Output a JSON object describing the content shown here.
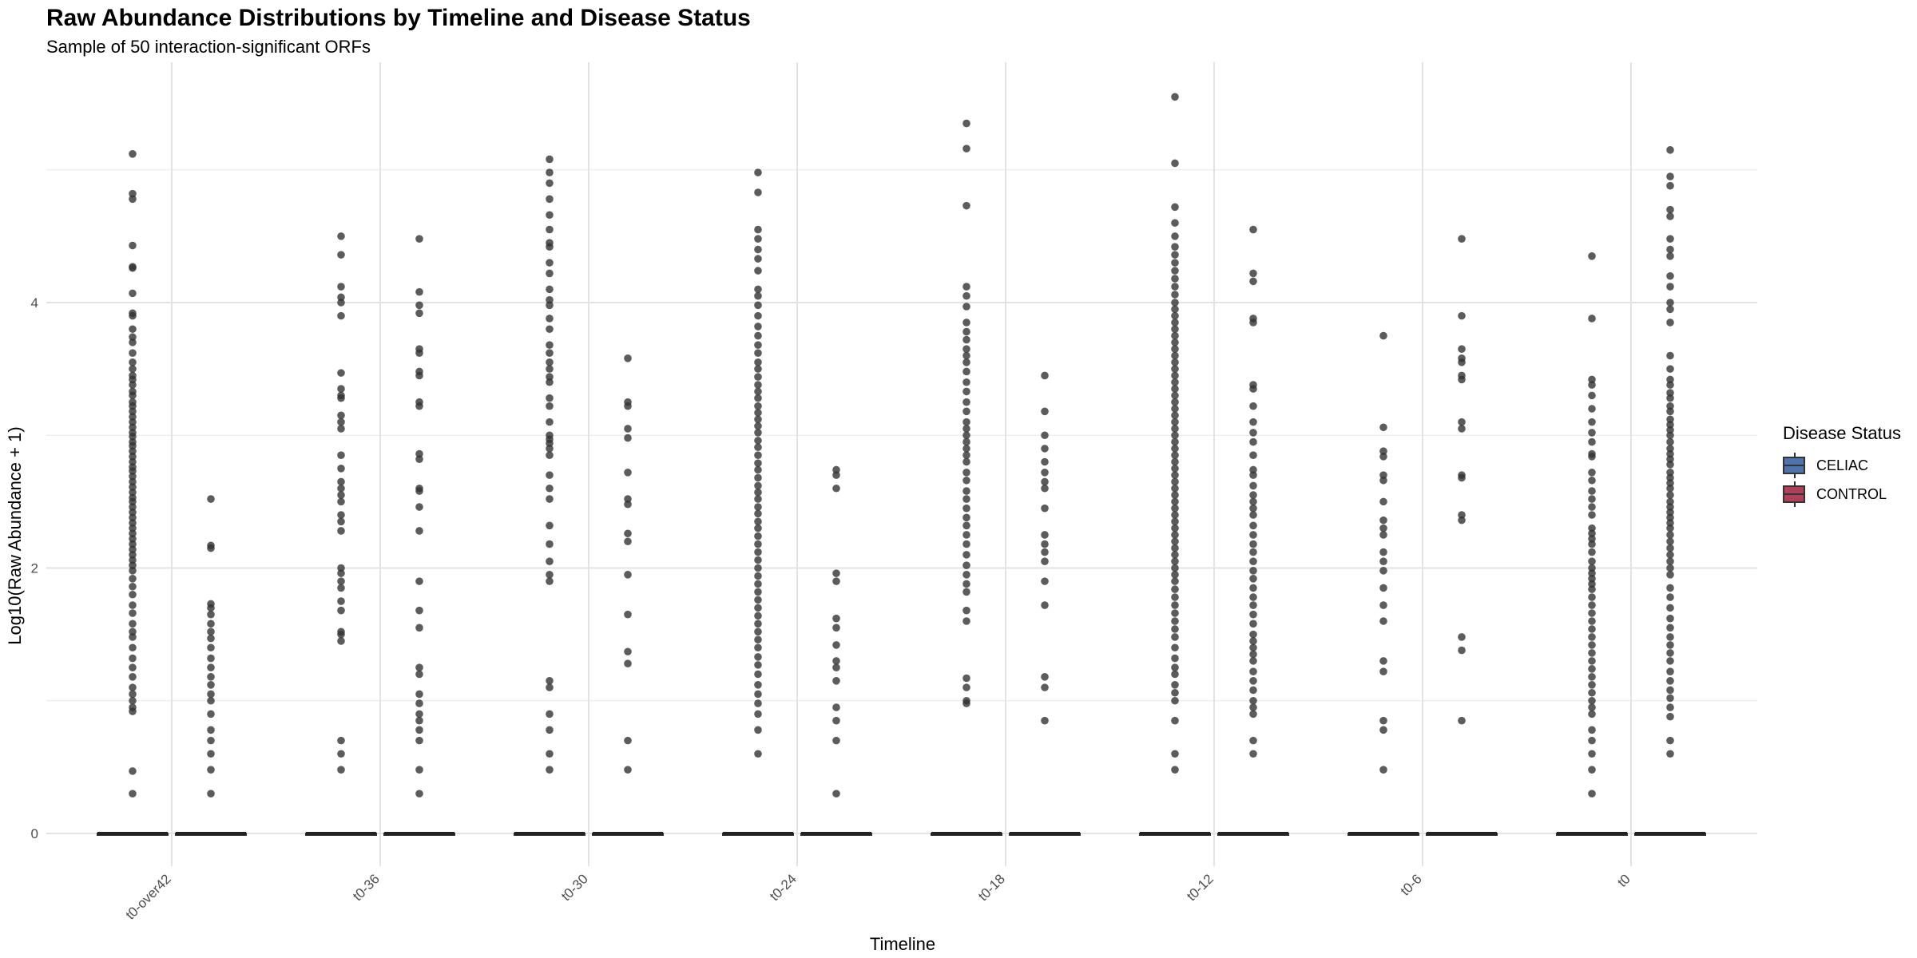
{
  "chart_data": {
    "type": "box-jitter",
    "title": "Raw Abundance Distributions by Timeline and Disease Status",
    "subtitle": "Sample of 50 interaction-significant ORFs",
    "xlabel": "Timeline",
    "ylabel": "Log10(Raw Abundance + 1)",
    "categories": [
      "t0-over42",
      "t0-36",
      "t0-30",
      "t0-24",
      "t0-18",
      "t0-12",
      "t0-6",
      "t0"
    ],
    "ylim": [
      -0.35,
      5.8
    ],
    "yticks": [
      0,
      2,
      4
    ],
    "grid": true,
    "legend": {
      "title": "Disease Status",
      "position": "right",
      "items": [
        {
          "label": "CELIAC",
          "color": "#4e74ad"
        },
        {
          "label": "CONTROL",
          "color": "#b0405a"
        }
      ]
    },
    "point_color": "#333333",
    "series": [
      {
        "name": "CELIAC",
        "color": "#4e74ad",
        "boxes": [
          {
            "category": "t0-over42",
            "q1": 0,
            "median": 0,
            "q3": 0
          },
          {
            "category": "t0-36",
            "q1": 0,
            "median": 0,
            "q3": 0
          },
          {
            "category": "t0-30",
            "q1": 0,
            "median": 0,
            "q3": 0
          },
          {
            "category": "t0-24",
            "q1": 0,
            "median": 0,
            "q3": 0
          },
          {
            "category": "t0-18",
            "q1": 0,
            "median": 0,
            "q3": 0
          },
          {
            "category": "t0-12",
            "q1": 0,
            "median": 0,
            "q3": 0
          },
          {
            "category": "t0-6",
            "q1": 0,
            "median": 0,
            "q3": 0
          },
          {
            "category": "t0",
            "q1": 0,
            "median": 0,
            "q3": 0
          }
        ],
        "outliers": [
          [
            5.12,
            4.82,
            4.78,
            4.43,
            4.27,
            4.26,
            4.07,
            3.92,
            3.9,
            3.8,
            3.74,
            3.7,
            3.62,
            3.55,
            3.5,
            3.45,
            3.42,
            3.38,
            3.33,
            3.3,
            3.25,
            3.22,
            3.18,
            3.14,
            3.1,
            3.06,
            3.02,
            2.99,
            2.95,
            2.92,
            2.88,
            2.84,
            2.8,
            2.76,
            2.73,
            2.69,
            2.65,
            2.61,
            2.57,
            2.53,
            2.5,
            2.46,
            2.42,
            2.38,
            2.34,
            2.3,
            2.26,
            2.22,
            2.18,
            2.14,
            2.1,
            2.06,
            2.02,
            1.98,
            1.92,
            1.86,
            1.8,
            1.72,
            1.66,
            1.58,
            1.52,
            1.48,
            1.4,
            1.32,
            1.25,
            1.18,
            1.1,
            1.05,
            1.0,
            0.95,
            0.92,
            0.47,
            0.3
          ],
          [
            4.5,
            4.36,
            4.12,
            4.04,
            4.0,
            3.9,
            3.47,
            3.35,
            3.3,
            3.28,
            3.15,
            3.1,
            3.05,
            2.85,
            2.75,
            2.65,
            2.6,
            2.55,
            2.5,
            2.4,
            2.35,
            2.28,
            2.0,
            1.96,
            1.9,
            1.85,
            1.75,
            1.68,
            1.52,
            1.5,
            1.45,
            0.7,
            0.6,
            0.48
          ],
          [
            5.08,
            4.98,
            4.9,
            4.78,
            4.66,
            4.55,
            4.45,
            4.42,
            4.3,
            4.22,
            4.1,
            4.02,
            3.98,
            3.88,
            3.8,
            3.68,
            3.62,
            3.55,
            3.5,
            3.44,
            3.4,
            3.28,
            3.22,
            3.1,
            3.0,
            2.97,
            2.94,
            2.9,
            2.85,
            2.7,
            2.6,
            2.52,
            2.32,
            2.18,
            2.05,
            1.95,
            1.9,
            1.15,
            1.1,
            0.9,
            0.78,
            0.6,
            0.48
          ],
          [
            4.98,
            4.83,
            4.55,
            4.48,
            4.4,
            4.33,
            4.24,
            4.1,
            4.05,
            3.98,
            3.9,
            3.82,
            3.75,
            3.68,
            3.62,
            3.55,
            3.5,
            3.44,
            3.38,
            3.33,
            3.28,
            3.22,
            3.17,
            3.12,
            3.07,
            3.02,
            2.96,
            2.91,
            2.85,
            2.79,
            2.74,
            2.68,
            2.62,
            2.57,
            2.52,
            2.46,
            2.41,
            2.35,
            2.3,
            2.24,
            2.18,
            2.12,
            2.06,
            2.0,
            1.94,
            1.88,
            1.82,
            1.76,
            1.7,
            1.64,
            1.58,
            1.52,
            1.46,
            1.4,
            1.33,
            1.27,
            1.2,
            1.12,
            1.05,
            0.98,
            0.9,
            0.78,
            0.6
          ],
          [
            5.35,
            5.16,
            4.73,
            4.12,
            4.05,
            3.97,
            3.85,
            3.78,
            3.72,
            3.65,
            3.6,
            3.55,
            3.48,
            3.4,
            3.33,
            3.25,
            3.18,
            3.1,
            3.05,
            3.0,
            2.95,
            2.9,
            2.85,
            2.8,
            2.72,
            2.66,
            2.58,
            2.52,
            2.45,
            2.38,
            2.32,
            2.25,
            2.18,
            2.1,
            2.02,
            1.95,
            1.88,
            1.82,
            1.68,
            1.6,
            1.17,
            1.1,
            1.0,
            0.98
          ],
          [
            5.55,
            5.05,
            4.72,
            4.6,
            4.5,
            4.42,
            4.36,
            4.3,
            4.24,
            4.18,
            4.12,
            4.06,
            4.0,
            3.95,
            3.9,
            3.85,
            3.8,
            3.75,
            3.7,
            3.65,
            3.6,
            3.55,
            3.5,
            3.45,
            3.4,
            3.35,
            3.3,
            3.25,
            3.2,
            3.15,
            3.1,
            3.05,
            3.0,
            2.95,
            2.9,
            2.85,
            2.8,
            2.75,
            2.7,
            2.65,
            2.6,
            2.55,
            2.5,
            2.45,
            2.4,
            2.35,
            2.3,
            2.25,
            2.2,
            2.15,
            2.1,
            2.05,
            2.0,
            1.95,
            1.9,
            1.84,
            1.78,
            1.72,
            1.66,
            1.6,
            1.54,
            1.48,
            1.4,
            1.32,
            1.25,
            1.2,
            1.12,
            1.06,
            1.0,
            0.85,
            0.6,
            0.48
          ],
          [
            3.75,
            3.06,
            2.88,
            2.84,
            2.7,
            2.66,
            2.5,
            2.36,
            2.3,
            2.25,
            2.12,
            2.05,
            1.98,
            1.85,
            1.72,
            1.6,
            1.3,
            1.22,
            0.85,
            0.78,
            0.48
          ],
          [
            4.35,
            3.88,
            3.42,
            3.38,
            3.3,
            3.2,
            3.1,
            3.02,
            2.95,
            2.86,
            2.84,
            2.72,
            2.66,
            2.58,
            2.52,
            2.46,
            2.4,
            2.3,
            2.26,
            2.22,
            2.18,
            2.12,
            2.05,
            2.0,
            1.96,
            1.92,
            1.88,
            1.84,
            1.78,
            1.72,
            1.66,
            1.6,
            1.54,
            1.48,
            1.42,
            1.36,
            1.3,
            1.24,
            1.18,
            1.12,
            1.06,
            1.0,
            0.95,
            0.9,
            0.78,
            0.7,
            0.6,
            0.48,
            0.3
          ]
        ]
      },
      {
        "name": "CONTROL",
        "color": "#b0405a",
        "boxes": [
          {
            "category": "t0-over42",
            "q1": 0,
            "median": 0,
            "q3": 0
          },
          {
            "category": "t0-36",
            "q1": 0,
            "median": 0,
            "q3": 0
          },
          {
            "category": "t0-30",
            "q1": 0,
            "median": 0,
            "q3": 0
          },
          {
            "category": "t0-24",
            "q1": 0,
            "median": 0,
            "q3": 0
          },
          {
            "category": "t0-18",
            "q1": 0,
            "median": 0,
            "q3": 0
          },
          {
            "category": "t0-12",
            "q1": 0,
            "median": 0,
            "q3": 0
          },
          {
            "category": "t0-6",
            "q1": 0,
            "median": 0,
            "q3": 0
          },
          {
            "category": "t0",
            "q1": 0,
            "median": 0,
            "q3": 0
          }
        ],
        "outliers": [
          [
            2.52,
            2.17,
            2.15,
            1.73,
            1.7,
            1.65,
            1.58,
            1.52,
            1.47,
            1.4,
            1.32,
            1.25,
            1.18,
            1.12,
            1.05,
            1.0,
            0.9,
            0.78,
            0.7,
            0.6,
            0.48,
            0.3
          ],
          [
            4.48,
            4.08,
            3.98,
            3.92,
            3.65,
            3.62,
            3.48,
            3.45,
            3.25,
            3.22,
            2.86,
            2.82,
            2.6,
            2.58,
            2.46,
            2.28,
            1.9,
            1.68,
            1.55,
            1.25,
            1.2,
            1.05,
            0.98,
            0.9,
            0.85,
            0.78,
            0.7,
            0.48,
            0.3
          ],
          [
            3.58,
            3.25,
            3.22,
            3.05,
            2.98,
            2.72,
            2.52,
            2.48,
            2.26,
            2.2,
            1.95,
            1.65,
            1.37,
            1.28,
            0.7,
            0.48
          ],
          [
            2.74,
            2.7,
            2.6,
            1.96,
            1.9,
            1.62,
            1.55,
            1.42,
            1.3,
            1.25,
            1.15,
            0.95,
            0.85,
            0.7,
            0.3
          ],
          [
            3.45,
            3.18,
            3.0,
            2.9,
            2.8,
            2.72,
            2.65,
            2.6,
            2.45,
            2.25,
            2.18,
            2.12,
            2.05,
            1.9,
            1.72,
            1.18,
            1.1,
            0.85
          ],
          [
            4.55,
            4.22,
            4.16,
            3.88,
            3.85,
            3.38,
            3.35,
            3.22,
            3.1,
            3.02,
            2.95,
            2.85,
            2.74,
            2.7,
            2.62,
            2.55,
            2.5,
            2.45,
            2.4,
            2.32,
            2.25,
            2.18,
            2.12,
            2.05,
            1.98,
            1.92,
            1.85,
            1.78,
            1.72,
            1.65,
            1.58,
            1.5,
            1.45,
            1.4,
            1.35,
            1.3,
            1.22,
            1.15,
            1.08,
            1.0,
            0.95,
            0.9,
            0.7,
            0.6
          ],
          [
            4.48,
            3.9,
            3.65,
            3.58,
            3.55,
            3.45,
            3.42,
            3.1,
            3.05,
            2.7,
            2.68,
            2.4,
            2.36,
            1.48,
            1.38,
            0.85
          ],
          [
            5.15,
            4.95,
            4.88,
            4.7,
            4.65,
            4.48,
            4.4,
            4.35,
            4.2,
            4.12,
            4.0,
            3.95,
            3.85,
            3.6,
            3.5,
            3.42,
            3.38,
            3.32,
            3.28,
            3.22,
            3.18,
            3.12,
            3.08,
            3.04,
            3.0,
            2.95,
            2.9,
            2.86,
            2.82,
            2.78,
            2.72,
            2.68,
            2.64,
            2.6,
            2.55,
            2.5,
            2.46,
            2.42,
            2.38,
            2.34,
            2.3,
            2.25,
            2.2,
            2.15,
            2.1,
            2.05,
            2.0,
            1.95,
            1.85,
            1.78,
            1.7,
            1.62,
            1.55,
            1.48,
            1.42,
            1.36,
            1.3,
            1.22,
            1.15,
            1.08,
            1.02,
            0.95,
            0.88,
            0.7,
            0.6
          ]
        ]
      }
    ]
  }
}
